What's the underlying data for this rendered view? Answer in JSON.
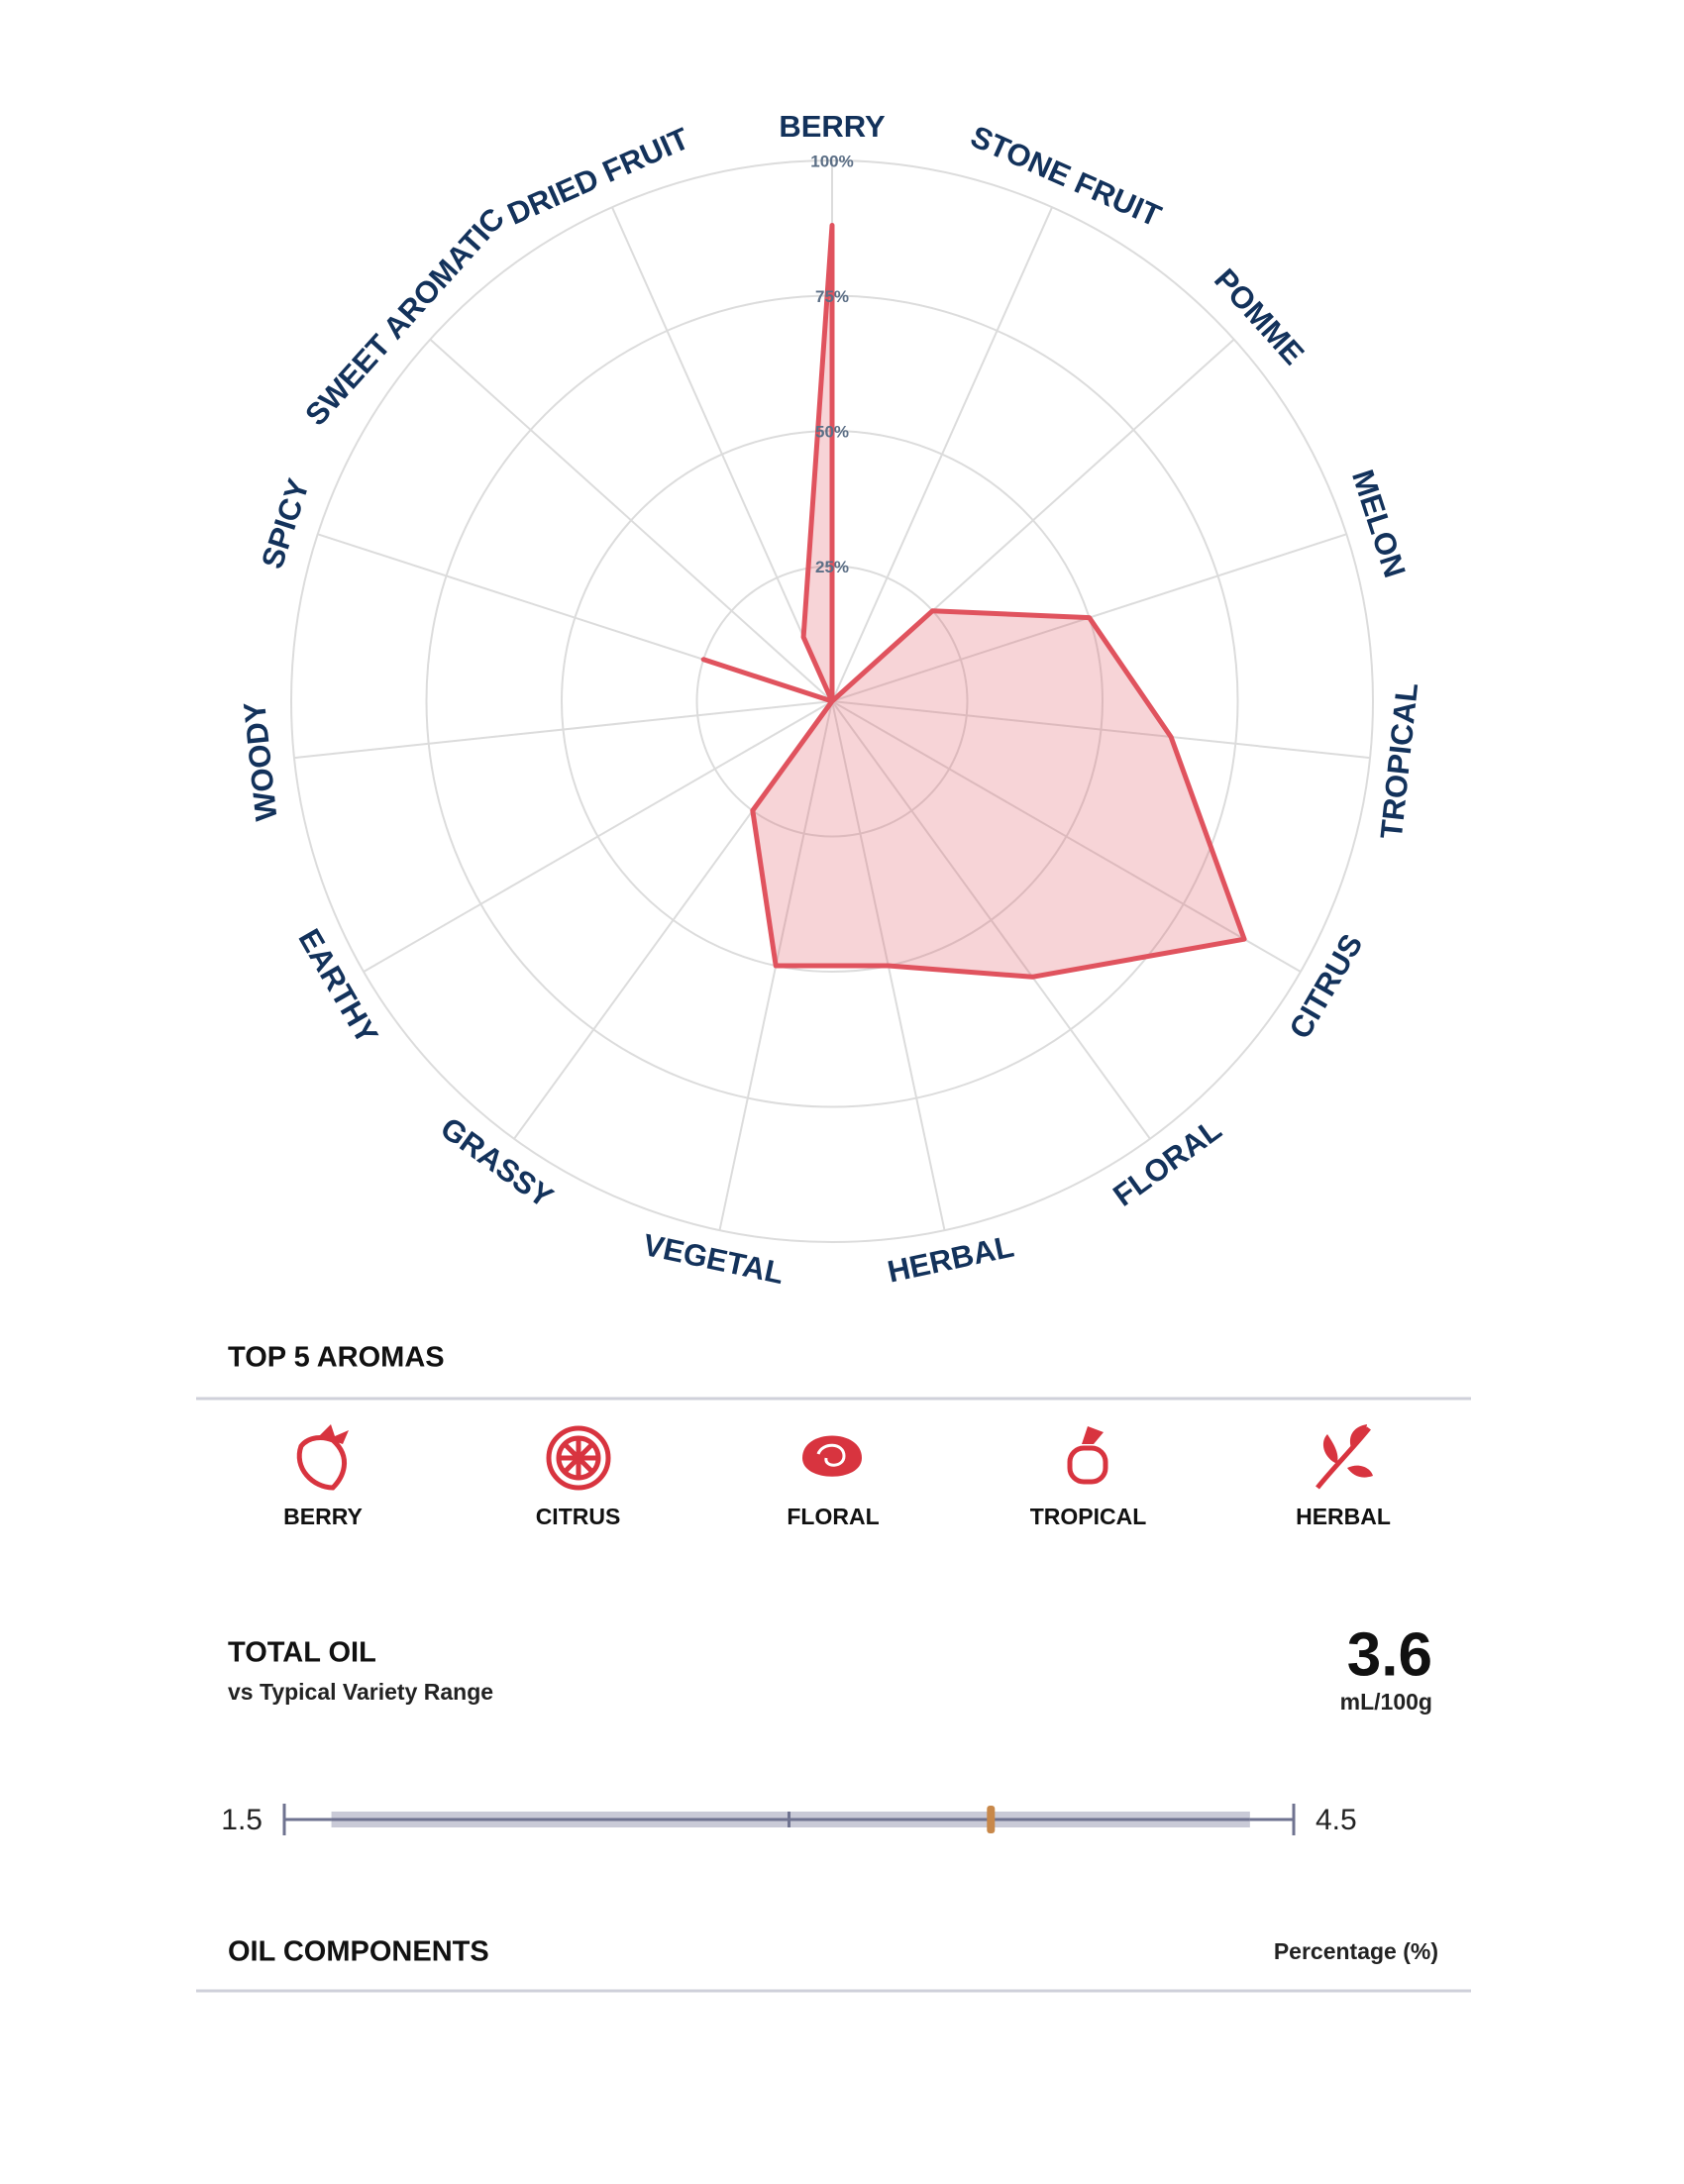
{
  "chart_data": {
    "type": "radar",
    "categories": [
      "BERRY",
      "STONE FRUIT",
      "POMME",
      "MELON",
      "TROPICAL",
      "CITRUS",
      "FLORAL",
      "HERBAL",
      "VEGETAL",
      "GRASSY",
      "EARTHY",
      "WOODY",
      "SPICY",
      "SWEET AROMATIC",
      "DRIED FRUIT"
    ],
    "values": [
      88,
      0,
      25,
      50,
      63,
      88,
      63,
      50,
      50,
      25,
      0,
      0,
      25,
      0,
      13
    ],
    "color": "#e0535e",
    "ylim": [
      0,
      100
    ],
    "yticks": [
      {
        "value": 25,
        "label": "25%"
      },
      {
        "value": 50,
        "label": "50%"
      },
      {
        "value": 75,
        "label": "75%"
      },
      {
        "value": 100,
        "label": "100%"
      }
    ],
    "grid": true
  },
  "top_aromas": {
    "title": "TOP 5 AROMAS",
    "items": [
      "BERRY",
      "CITRUS",
      "FLORAL",
      "TROPICAL",
      "HERBAL"
    ]
  },
  "total_oil": {
    "title": "TOTAL OIL",
    "subtitle": "vs Typical Variety Range",
    "value": 3.6,
    "unit": "mL/100g",
    "range_min": 1.5,
    "range_max": 4.5,
    "typical_low": 1.64,
    "typical_high": 4.37,
    "typical_mean": 3.0
  },
  "oil_components": {
    "title": "OIL COMPONENTS",
    "column_label": "Percentage (%)"
  }
}
